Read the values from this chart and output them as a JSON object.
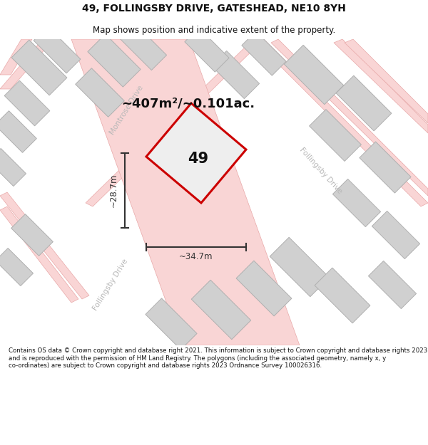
{
  "title": "49, FOLLINGSBY DRIVE, GATESHEAD, NE10 8YH",
  "subtitle": "Map shows position and indicative extent of the property.",
  "area_text": "~407m²/~0.101ac.",
  "label_49": "49",
  "dim_width": "~34.7m",
  "dim_height": "~28.7m",
  "footer": "Contains OS data © Crown copyright and database right 2021. This information is subject to Crown copyright and database rights 2023 and is reproduced with the permission of HM Land Registry. The polygons (including the associated geometry, namely x, y co-ordinates) are subject to Crown copyright and database rights 2023 Ordnance Survey 100026316.",
  "map_bg": "#f2f2f2",
  "road_fill": "#f9d5d5",
  "road_edge": "#e8a8a8",
  "building_fill": "#d0d0d0",
  "building_edge": "#b0b0b0",
  "plot_fill": "#eeeeee",
  "plot_edge": "#cc0000",
  "dim_color": "#333333",
  "road_label_color": "#b8b8b8",
  "title_color": "#111111",
  "footer_color": "#111111"
}
